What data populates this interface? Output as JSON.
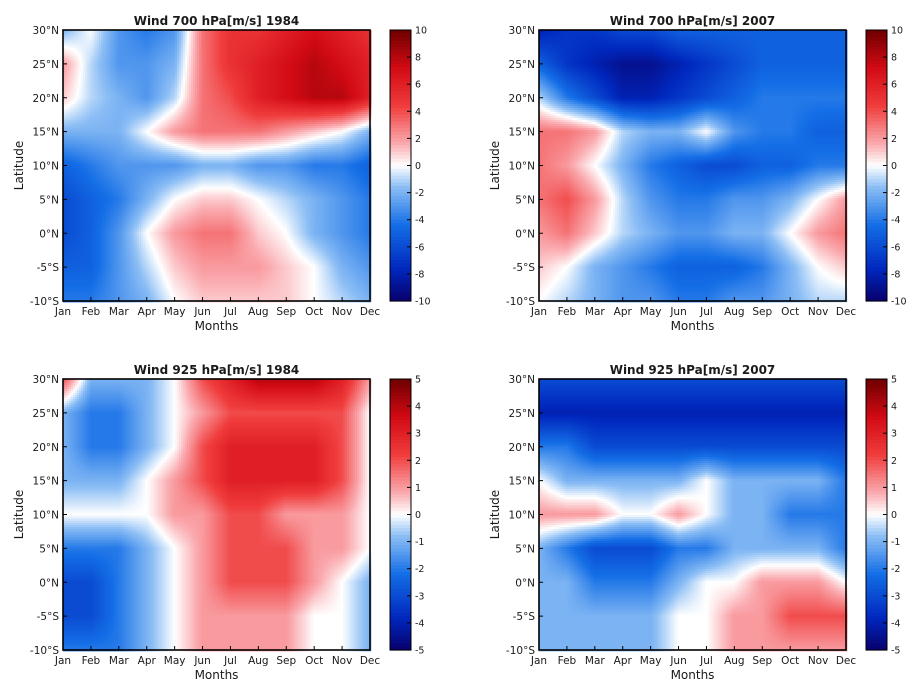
{
  "chart_data": [
    {
      "type": "heatmap",
      "title": "Wind 700 hPa[m/s] 1984",
      "xlabel": "Months",
      "ylabel": "Latitude",
      "x_ticks": [
        "Jan",
        "Feb",
        "Mar",
        "Apr",
        "May",
        "Jun",
        "Jul",
        "Aug",
        "Sep",
        "Oct",
        "Nov",
        "Dec"
      ],
      "y_ticks": [
        "30°N",
        "25°N",
        "20°N",
        "15°N",
        "10°N",
        "5°N",
        "0°N",
        "-5°S",
        "-10°S"
      ],
      "y_values": [
        30,
        25,
        20,
        15,
        10,
        5,
        0,
        -5,
        -10
      ],
      "clim": [
        -10,
        10
      ],
      "colorbar_ticks": [
        10,
        8,
        6,
        4,
        2,
        0,
        -2,
        -4,
        -6,
        -8,
        -10
      ],
      "colormap": "blue-white-red",
      "values": [
        [
          -2,
          0,
          -3,
          -4,
          -3,
          3,
          5,
          5,
          6,
          7,
          6,
          5
        ],
        [
          2,
          -1,
          -3,
          -3,
          -2,
          3,
          5,
          6,
          7,
          8,
          7,
          6
        ],
        [
          1,
          -1,
          -2,
          -3,
          -1,
          3,
          4,
          6,
          7,
          8,
          8,
          6
        ],
        [
          -2,
          -2,
          -2,
          0,
          2,
          3,
          3,
          3,
          2,
          1,
          0,
          -2
        ],
        [
          -5,
          -4,
          -3,
          -3,
          -3,
          -2,
          -2,
          -3,
          -3,
          -4,
          -4,
          -5
        ],
        [
          -6,
          -5,
          -4,
          -2,
          0,
          1,
          1,
          0,
          -1,
          -2,
          -3,
          -4
        ],
        [
          -6,
          -5,
          -3,
          0,
          2,
          3,
          3,
          1,
          0,
          -2,
          -3,
          -4
        ],
        [
          -5,
          -5,
          -3,
          -1,
          1,
          2,
          2,
          2,
          1,
          0,
          -2,
          -3
        ],
        [
          -4,
          -4,
          -3,
          -2,
          0,
          1,
          1,
          1,
          1,
          0,
          -1,
          -2
        ]
      ]
    },
    {
      "type": "heatmap",
      "title": "Wind 700 hPa[m/s] 2007",
      "xlabel": "Months",
      "ylabel": "Latitude",
      "x_ticks": [
        "Jan",
        "Feb",
        "Mar",
        "Apr",
        "May",
        "Jun",
        "Jul",
        "Aug",
        "Sep",
        "Oct",
        "Nov",
        "Dec"
      ],
      "y_ticks": [
        "30°N",
        "25°N",
        "20°N",
        "15°N",
        "10°N",
        "5°N",
        "0°N",
        "-5°S",
        "-10°S"
      ],
      "y_values": [
        30,
        25,
        20,
        15,
        10,
        5,
        0,
        -5,
        -10
      ],
      "clim": [
        -10,
        10
      ],
      "colorbar_ticks": [
        10,
        8,
        6,
        4,
        2,
        0,
        -2,
        -4,
        -6,
        -8,
        -10
      ],
      "colormap": "blue-white-red",
      "values": [
        [
          -8,
          -7,
          -7,
          -6,
          -6,
          -5,
          -5,
          -5,
          -5,
          -5,
          -5,
          -5
        ],
        [
          -5,
          -7,
          -8,
          -9,
          -9,
          -8,
          -7,
          -6,
          -5,
          -5,
          -5,
          -5
        ],
        [
          -1,
          -4,
          -6,
          -8,
          -8,
          -7,
          -6,
          -5,
          -4,
          -4,
          -4,
          -4
        ],
        [
          3,
          3,
          2,
          -1,
          -2,
          -2,
          0,
          -3,
          -4,
          -4,
          -5,
          -5
        ],
        [
          3,
          2,
          0,
          -2,
          -4,
          -5,
          -6,
          -6,
          -5,
          -5,
          -4,
          -4
        ],
        [
          3,
          4,
          2,
          -1,
          -3,
          -4,
          -4,
          -3,
          -3,
          -2,
          0,
          2
        ],
        [
          2,
          3,
          1,
          -1,
          -2,
          -3,
          -3,
          -2,
          -2,
          0,
          2,
          3
        ],
        [
          1,
          0,
          -2,
          -3,
          -4,
          -5,
          -5,
          -5,
          -4,
          -2,
          0,
          1
        ],
        [
          0,
          -1,
          -2,
          -3,
          -3,
          -4,
          -4,
          -3,
          -3,
          -2,
          -1,
          -1
        ]
      ]
    },
    {
      "type": "heatmap",
      "title": "Wind 925 hPa[m/s] 1984",
      "xlabel": "Months",
      "ylabel": "Latitude",
      "x_ticks": [
        "Jan",
        "Feb",
        "Mar",
        "Apr",
        "May",
        "Jun",
        "Jul",
        "Aug",
        "Sep",
        "Oct",
        "Nov",
        "Dec"
      ],
      "y_ticks": [
        "30°N",
        "25°N",
        "20°N",
        "15°N",
        "10°N",
        "5°N",
        "0°N",
        "-5°S",
        "-10°S"
      ],
      "y_values": [
        30,
        25,
        20,
        15,
        10,
        5,
        0,
        -5,
        -10
      ],
      "clim": [
        -5,
        5
      ],
      "colorbar_ticks": [
        5,
        4,
        3,
        2,
        1,
        0,
        -1,
        -2,
        -3,
        -4,
        -5
      ],
      "colormap": "blue-white-red",
      "values": [
        [
          2,
          -1,
          -1,
          -1,
          0,
          2,
          3,
          4,
          4,
          4,
          3,
          1
        ],
        [
          -1,
          -2,
          -2,
          -1,
          0,
          1,
          2,
          2,
          2,
          2,
          2,
          0
        ],
        [
          -1,
          -2,
          -2,
          -1,
          0,
          2,
          3,
          3,
          3,
          3,
          2,
          0
        ],
        [
          -1,
          -1,
          -1,
          0,
          1,
          2,
          3,
          3,
          3,
          3,
          2,
          0
        ],
        [
          0,
          0,
          0,
          0,
          1,
          1,
          2,
          2,
          1,
          1,
          1,
          0
        ],
        [
          -2,
          -2,
          -2,
          -1,
          0,
          1,
          2,
          2,
          2,
          1,
          1,
          0
        ],
        [
          -3,
          -3,
          -2,
          -1,
          0,
          1,
          2,
          2,
          2,
          1,
          0,
          -1
        ],
        [
          -3,
          -3,
          -2,
          -1,
          0,
          1,
          1,
          1,
          1,
          0,
          0,
          -1
        ],
        [
          -2,
          -2,
          -2,
          -1,
          0,
          1,
          1,
          1,
          1,
          0,
          0,
          -1
        ]
      ]
    },
    {
      "type": "heatmap",
      "title": "Wind 925 hPa[m/s] 2007",
      "xlabel": "Months",
      "ylabel": "Latitude",
      "x_ticks": [
        "Jan",
        "Feb",
        "Mar",
        "Apr",
        "May",
        "Jun",
        "Jul",
        "Aug",
        "Sep",
        "Oct",
        "Nov",
        "Dec"
      ],
      "y_ticks": [
        "30°N",
        "25°N",
        "20°N",
        "15°N",
        "10°N",
        "5°N",
        "0°N",
        "-5°S",
        "-10°S"
      ],
      "y_values": [
        30,
        25,
        20,
        15,
        10,
        5,
        0,
        -5,
        -10
      ],
      "clim": [
        -5,
        5
      ],
      "colorbar_ticks": [
        5,
        4,
        3,
        2,
        1,
        0,
        -1,
        -2,
        -3,
        -4,
        -5
      ],
      "colormap": "blue-white-red",
      "values": [
        [
          -3,
          -3,
          -3,
          -3,
          -3,
          -3,
          -3,
          -3,
          -3,
          -3,
          -3,
          -3
        ],
        [
          -4,
          -4,
          -4,
          -4,
          -4,
          -4,
          -4,
          -4,
          -4,
          -4,
          -4,
          -4
        ],
        [
          -2,
          -2,
          -3,
          -3,
          -3,
          -3,
          -3,
          -3,
          -3,
          -3,
          -3,
          -3
        ],
        [
          0,
          -1,
          -1,
          -1,
          -1,
          -1,
          0,
          -1,
          -1,
          -1,
          -1,
          -2
        ],
        [
          1,
          1,
          1,
          0,
          0,
          1,
          0,
          -1,
          -1,
          -2,
          -2,
          -2
        ],
        [
          -1,
          -2,
          -3,
          -3,
          -3,
          -2,
          -2,
          -1,
          -1,
          -1,
          -1,
          -2
        ],
        [
          -1,
          -1,
          -2,
          -2,
          -2,
          -1,
          0,
          0,
          1,
          1,
          1,
          0
        ],
        [
          -1,
          -1,
          -1,
          -1,
          -1,
          0,
          0,
          1,
          1,
          2,
          2,
          2
        ],
        [
          -1,
          -1,
          -1,
          -1,
          -1,
          0,
          0,
          1,
          1,
          1,
          1,
          1
        ]
      ]
    }
  ]
}
